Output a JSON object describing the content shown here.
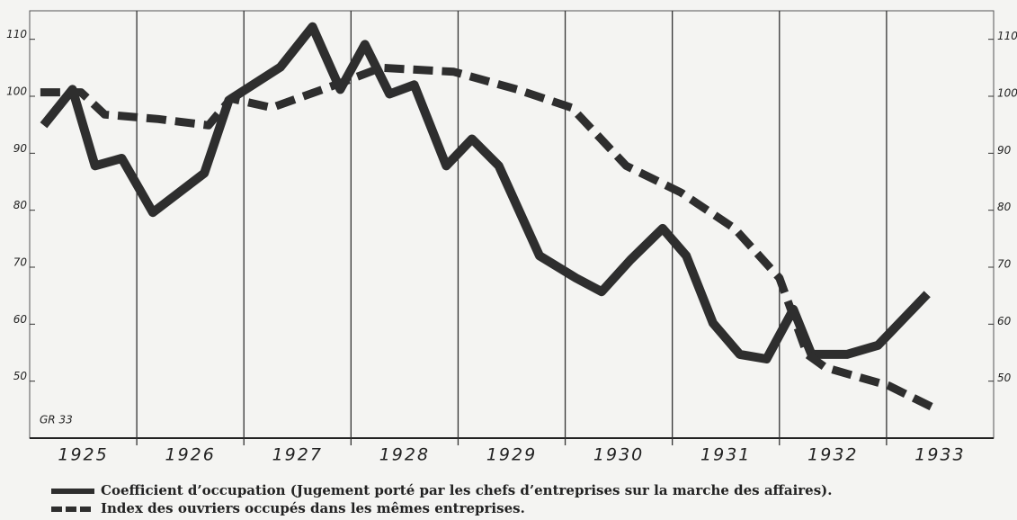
{
  "chart_data": {
    "type": "line",
    "note": "GR 33",
    "categories": [
      "1925",
      "1926",
      "1927",
      "1928",
      "1929",
      "1930",
      "1931",
      "1932",
      "1933"
    ],
    "xlim": [
      1925,
      1934
    ],
    "ylim": [
      40,
      115
    ],
    "yticks": [
      50,
      60,
      70,
      80,
      90,
      100,
      110
    ],
    "series": [
      {
        "name": "Coefficient d’occupation (Jugement porté par les chefs d’entreprises sur la marche des affaires).",
        "color": "#2e2e2e",
        "dash": false,
        "x": [
          1925.13,
          1925.4,
          1925.61,
          1925.86,
          1926.15,
          1926.63,
          1926.86,
          1927.34,
          1927.64,
          1927.9,
          1928.13,
          1928.36,
          1928.59,
          1928.89,
          1929.13,
          1929.38,
          1929.76,
          1930.1,
          1930.34,
          1930.61,
          1930.91,
          1931.13,
          1931.38,
          1931.63,
          1931.88,
          1932.13,
          1932.3,
          1932.63,
          1932.92,
          1933.38
        ],
        "values": [
          94.9,
          101.2,
          87.8,
          89.1,
          79.6,
          86.5,
          99.3,
          105.1,
          112.2,
          101.2,
          109.1,
          100.4,
          102,
          87.8,
          92.5,
          87.8,
          72,
          68.1,
          65.7,
          71.3,
          76.8,
          72,
          60.2,
          54.7,
          53.9,
          62.6,
          54.7,
          54.7,
          56.3,
          65.3
        ]
      },
      {
        "name": "Index des ouvriers occupés dans les mêmes entreprises.",
        "color": "#2e2e2e",
        "dash": true,
        "x": [
          1925.1,
          1925.48,
          1925.7,
          1926.2,
          1926.67,
          1926.88,
          1927.26,
          1927.9,
          1928.28,
          1928.96,
          1929.55,
          1930.06,
          1930.57,
          1931.08,
          1931.58,
          1932,
          1932.26,
          1932.43,
          1933.02,
          1933.44
        ],
        "values": [
          100.7,
          100.7,
          96.8,
          96,
          94.9,
          99.6,
          98,
          102.3,
          105,
          104.3,
          101.2,
          98,
          87.8,
          83.1,
          76.8,
          68.1,
          54.7,
          52.4,
          49.2,
          45.3
        ]
      }
    ]
  }
}
